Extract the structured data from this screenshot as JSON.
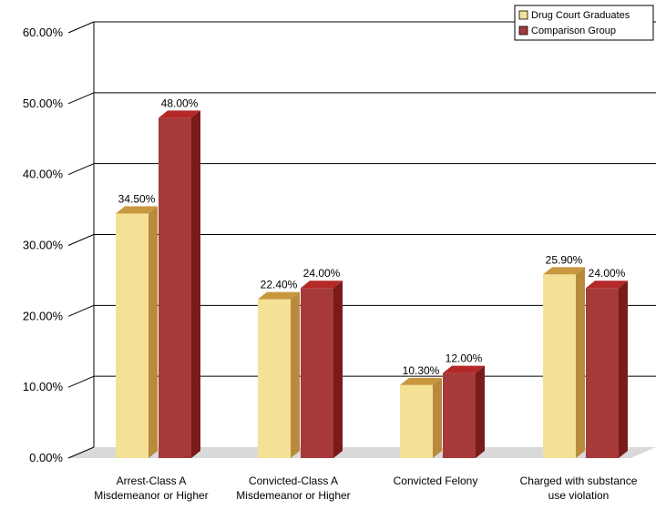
{
  "chart_data": {
    "type": "bar",
    "categories": [
      [
        "Arrest-Class A",
        "Misdemeanor or Higher"
      ],
      [
        "Convicted-Class A",
        "Misdemeanor or Higher"
      ],
      [
        "Convicted Felony"
      ],
      [
        "Charged with substance",
        "use violation"
      ]
    ],
    "series": [
      {
        "name": "Drug Court Graduates",
        "values": [
          34.5,
          22.4,
          10.3,
          25.9
        ],
        "labels": [
          "34.50%",
          "22.40%",
          "10.30%",
          "25.90%"
        ],
        "color": "#F5E196",
        "side_color": "#B88A3D",
        "top_color": "#C8973F"
      },
      {
        "name": "Comparison Group",
        "values": [
          48.0,
          24.0,
          12.0,
          24.0
        ],
        "labels": [
          "48.00%",
          "24.00%",
          "12.00%",
          "24.00%"
        ],
        "color": "#A63A3A",
        "side_color": "#7A1A1A",
        "top_color": "#B42828"
      }
    ],
    "y_ticks": [
      {
        "value": 0,
        "label": "0.00%"
      },
      {
        "value": 10,
        "label": "10.00%"
      },
      {
        "value": 20,
        "label": "20.00%"
      },
      {
        "value": 30,
        "label": "30.00%"
      },
      {
        "value": 40,
        "label": "40.00%"
      },
      {
        "value": 50,
        "label": "50.00%"
      },
      {
        "value": 60,
        "label": "60.00%"
      }
    ],
    "ylim": [
      0,
      60
    ],
    "grid": true,
    "legend_position": "top-right",
    "title": "",
    "xlabel": "",
    "ylabel": ""
  }
}
